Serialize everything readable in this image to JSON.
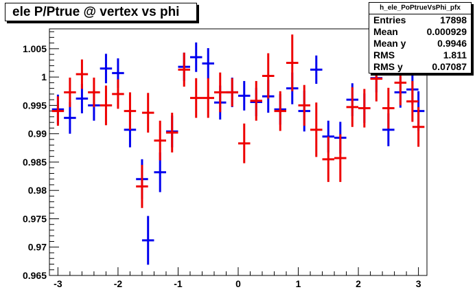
{
  "title": "ele P/Ptrue @ vertex vs phi",
  "stats": {
    "name": "h_ele_PoPtrueVsPhi_pfx",
    "rows": [
      {
        "label": "Entries",
        "value": "17898"
      },
      {
        "label": "Mean",
        "value": "0.000929"
      },
      {
        "label": "Mean y",
        "value": "0.9946"
      },
      {
        "label": "RMS",
        "value": "1.811"
      },
      {
        "label": "RMS y",
        "value": "0.07087"
      }
    ]
  },
  "chart_data": {
    "type": "scatter",
    "xlim": [
      -3.1416,
      3.1416
    ],
    "ylim": [
      0.965,
      1.0085
    ],
    "xticks": [
      -3,
      -2,
      -1,
      0,
      1,
      2,
      3
    ],
    "yticks": [
      0.965,
      0.97,
      0.975,
      0.98,
      0.985,
      0.99,
      0.995,
      1,
      1.005
    ],
    "ytick_labels": [
      "0.965",
      "0.97",
      "0.975",
      "0.98",
      "0.985",
      "0.99",
      "0.995",
      "1",
      "1.005"
    ],
    "xbin_half_width": 0.1,
    "series": [
      {
        "color": "#0000ee",
        "x": [
          -3.0,
          -2.8,
          -2.6,
          -2.4,
          -2.2,
          -2.0,
          -1.8,
          -1.6,
          -1.5,
          -1.3,
          -1.1,
          -0.9,
          -0.7,
          -0.5,
          -0.3,
          -0.1,
          0.1,
          0.3,
          0.5,
          0.7,
          0.9,
          1.1,
          1.3,
          1.5,
          1.7,
          1.9,
          2.1,
          2.3,
          2.5,
          2.7,
          2.9,
          3.0
        ],
        "y": [
          0.9943,
          0.9928,
          0.9962,
          0.995,
          1.0015,
          1.0007,
          0.9907,
          0.982,
          0.9712,
          0.9832,
          0.9904,
          1.0018,
          1.0035,
          1.0024,
          0.9955,
          0.9973,
          0.9967,
          0.9956,
          0.9966,
          0.9943,
          0.998,
          0.994,
          1.0013,
          0.9895,
          0.9893,
          0.996,
          0.9945,
          0.9998,
          0.9907,
          0.9973,
          0.9978,
          0.994
        ],
        "err": [
          0.0026,
          0.0028,
          0.0026,
          0.0027,
          0.0026,
          0.0026,
          0.0031,
          0.0035,
          0.0043,
          0.0035,
          0.0028,
          0.0025,
          0.0026,
          0.0027,
          0.003,
          0.0026,
          0.0026,
          0.0025,
          0.0029,
          0.0027,
          0.0028,
          0.0036,
          0.0025,
          0.0028,
          0.0028,
          0.0029,
          0.0026,
          0.0025,
          0.0029,
          0.0027,
          0.0026,
          0.0035
        ]
      },
      {
        "color": "#ee0000",
        "x": [
          -3.0,
          -2.8,
          -2.6,
          -2.4,
          -2.2,
          -2.0,
          -1.8,
          -1.6,
          -1.5,
          -1.3,
          -1.1,
          -0.9,
          -0.7,
          -0.5,
          -0.3,
          -0.1,
          0.1,
          0.3,
          0.5,
          0.7,
          0.9,
          1.1,
          1.3,
          1.5,
          1.7,
          1.9,
          2.1,
          2.3,
          2.5,
          2.7,
          2.9,
          3.0
        ],
        "y": [
          0.994,
          0.9973,
          1.0005,
          0.9973,
          0.995,
          0.997,
          0.994,
          0.9807,
          0.9937,
          0.9888,
          0.9902,
          1.0013,
          0.9963,
          0.9963,
          0.9973,
          0.9973,
          0.9883,
          0.9958,
          1.0002,
          0.994,
          1.0025,
          0.995,
          0.9907,
          0.9855,
          0.9857,
          0.9947,
          0.9945,
          0.9997,
          0.9945,
          0.999,
          0.9957,
          0.9912
        ],
        "err": [
          0.0026,
          0.0026,
          0.0026,
          0.0026,
          0.0035,
          0.0026,
          0.0033,
          0.0038,
          0.0035,
          0.0035,
          0.0035,
          0.003,
          0.0035,
          0.0035,
          0.0035,
          0.0025,
          0.0035,
          0.0035,
          0.004,
          0.0035,
          0.005,
          0.0036,
          0.0048,
          0.004,
          0.0042,
          0.0035,
          0.0034,
          0.004,
          0.0036,
          0.004,
          0.0036,
          0.0035
        ]
      }
    ]
  }
}
